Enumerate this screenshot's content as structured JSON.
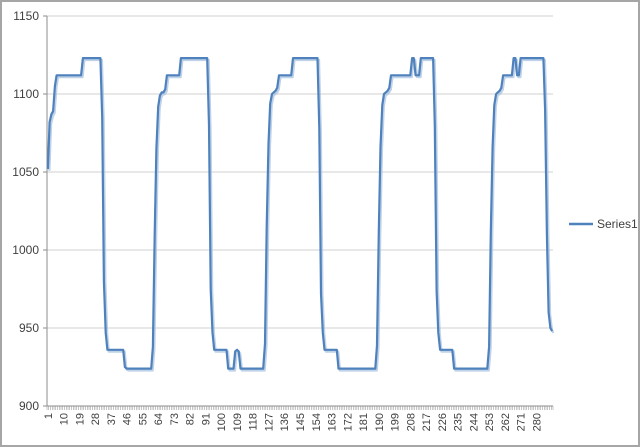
{
  "chart": {
    "colors": {
      "series": "#4F81BD",
      "series_halo": "#A9C3E0",
      "grid": "#D2D2D2",
      "axis": "#8E8E8E",
      "tick": "#8E8E8E",
      "text": "#3F3F3F",
      "frame_border": "#A6A6A6",
      "background": "#FFFFFF"
    }
  },
  "chart_data": {
    "type": "line",
    "title": "",
    "xlabel": "",
    "ylabel": "",
    "grid": true,
    "legend": {
      "entries": [
        "Series1"
      ],
      "position": "right"
    },
    "y_axis": {
      "ticks": [
        900,
        950,
        1000,
        1050,
        1100,
        1150
      ],
      "range": [
        900,
        1150
      ]
    },
    "x_axis": {
      "label_rotation_deg": -90,
      "tick_labels": [
        "1",
        "10",
        "19",
        "28",
        "37",
        "46",
        "55",
        "64",
        "73",
        "82",
        "91",
        "100",
        "109",
        "118",
        "127",
        "136",
        "145",
        "154",
        "163",
        "172",
        "181",
        "190",
        "199",
        "208",
        "217",
        "226",
        "235",
        "244",
        "253",
        "262",
        "271",
        "280"
      ]
    },
    "series": [
      {
        "name": "Series1",
        "color": "#4F81BD",
        "values": [
          1052,
          1082,
          1087,
          1089,
          1105,
          1112,
          1112,
          1112,
          1112,
          1112,
          1112,
          1112,
          1112,
          1112,
          1112,
          1112,
          1112,
          1112,
          1112,
          1112,
          1123,
          1123,
          1123,
          1123,
          1123,
          1123,
          1123,
          1123,
          1123,
          1123,
          1123,
          1085,
          980,
          947,
          936,
          936,
          936,
          936,
          936,
          936,
          936,
          936,
          936,
          936,
          925,
          924,
          924,
          924,
          924,
          924,
          924,
          924,
          924,
          924,
          924,
          924,
          924,
          924,
          924,
          924,
          938,
          1010,
          1065,
          1092,
          1099,
          1101,
          1101,
          1103,
          1112,
          1112,
          1112,
          1112,
          1112,
          1112,
          1112,
          1112,
          1123,
          1123,
          1123,
          1123,
          1123,
          1123,
          1123,
          1123,
          1123,
          1123,
          1123,
          1123,
          1123,
          1123,
          1123,
          1123,
          1080,
          975,
          947,
          936,
          936,
          936,
          936,
          936,
          936,
          936,
          936,
          924,
          924,
          924,
          924,
          935,
          936,
          935,
          924,
          924,
          924,
          924,
          924,
          924,
          924,
          924,
          924,
          924,
          924,
          924,
          924,
          924,
          940,
          1015,
          1068,
          1094,
          1100,
          1101,
          1102,
          1104,
          1112,
          1112,
          1112,
          1112,
          1112,
          1112,
          1112,
          1112,
          1123,
          1123,
          1123,
          1123,
          1123,
          1123,
          1123,
          1123,
          1123,
          1123,
          1123,
          1123,
          1123,
          1123,
          1123,
          1078,
          972,
          947,
          936,
          936,
          936,
          936,
          936,
          936,
          936,
          936,
          924,
          924,
          924,
          924,
          924,
          924,
          924,
          924,
          924,
          924,
          924,
          924,
          924,
          924,
          924,
          924,
          924,
          924,
          924,
          924,
          924,
          924,
          939,
          1012,
          1066,
          1093,
          1100,
          1101,
          1102,
          1104,
          1112,
          1112,
          1112,
          1112,
          1112,
          1112,
          1112,
          1112,
          1112,
          1112,
          1112,
          1112,
          1123,
          1123,
          1112,
          1112,
          1112,
          1123,
          1123,
          1123,
          1123,
          1123,
          1123,
          1123,
          1123,
          1080,
          974,
          947,
          936,
          936,
          936,
          936,
          936,
          936,
          936,
          936,
          924,
          924,
          924,
          924,
          924,
          924,
          924,
          924,
          924,
          924,
          924,
          924,
          924,
          924,
          924,
          924,
          924,
          924,
          924,
          924,
          938,
          1011,
          1066,
          1093,
          1100,
          1101,
          1102,
          1104,
          1112,
          1112,
          1112,
          1112,
          1112,
          1112,
          1123,
          1123,
          1112,
          1112,
          1123,
          1123,
          1123,
          1123,
          1123,
          1123,
          1123,
          1123,
          1123,
          1123,
          1123,
          1123,
          1123,
          1123,
          1090,
          1010,
          960,
          950,
          948
        ]
      }
    ]
  }
}
